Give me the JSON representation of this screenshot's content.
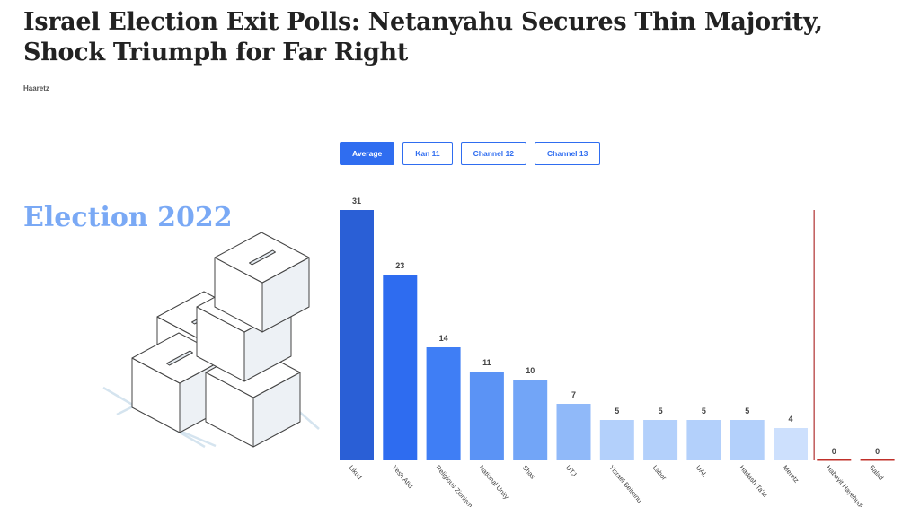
{
  "headline": "Israel Election Exit Polls: Netanyahu Secures Thin Majority, Shock Triumph for Far Right",
  "source": "Haaretz",
  "illustration_title": "Election 2022",
  "buttons": [
    {
      "label": "Average",
      "active": true
    },
    {
      "label": "Kan 11"
    },
    {
      "label": "Channel 12"
    },
    {
      "label": "Channel 13"
    }
  ],
  "chart_data": {
    "type": "bar",
    "categories": [
      "Likud",
      "Yesh Atid",
      "Religious Zionism",
      "National Unity",
      "Shas",
      "UTJ",
      "Yisrael Beiteinu",
      "Labor",
      "UAL",
      "Hadash-Ta'al",
      "Meretz",
      "Habayit Hayehudi",
      "Balad"
    ],
    "values": [
      31,
      23,
      14,
      11,
      10,
      7,
      5,
      5,
      5,
      5,
      4,
      0,
      0
    ],
    "colors": [
      "#2a5fd6",
      "#2e6cf0",
      "#3f7ef5",
      "#5b93f5",
      "#72a5f7",
      "#90b9f9",
      "#b3d0fb",
      "#b3d0fb",
      "#b3d0fb",
      "#b3d0fb",
      "#cde0fd",
      "#c0302a",
      "#c0302a"
    ],
    "threshold_divider_after": "Meretz",
    "divider_color": "#b03030",
    "ylim": [
      0,
      31
    ]
  }
}
